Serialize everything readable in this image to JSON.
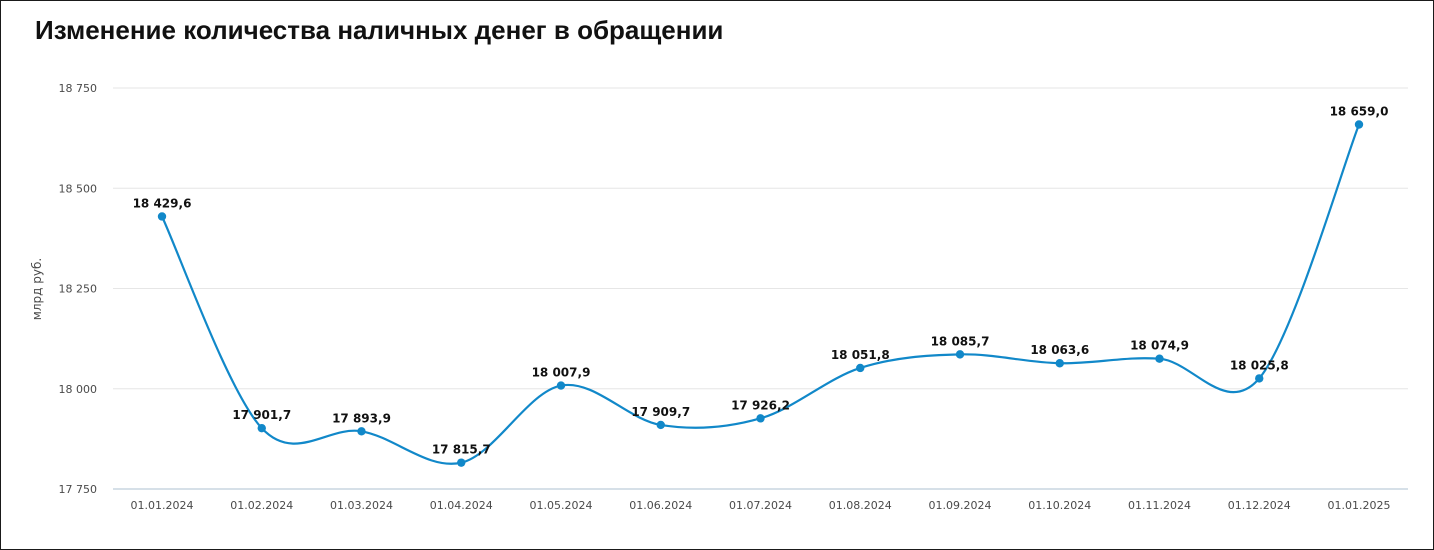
{
  "title": "Изменение количества наличных денег в обращении",
  "chart_data": {
    "type": "line",
    "title": "Изменение количества наличных денег в обращении",
    "xlabel": "",
    "ylabel": "млрд руб.",
    "categories": [
      "01.01.2024",
      "01.02.2024",
      "01.03.2024",
      "01.04.2024",
      "01.05.2024",
      "01.06.2024",
      "01.07.2024",
      "01.08.2024",
      "01.09.2024",
      "01.10.2024",
      "01.11.2024",
      "01.12.2024",
      "01.01.2025"
    ],
    "values": [
      18429.6,
      17901.7,
      17893.9,
      17815.7,
      18007.9,
      17909.7,
      17926.2,
      18051.8,
      18085.7,
      18063.6,
      18074.9,
      18025.8,
      18659.0
    ],
    "data_labels": [
      "18 429,6",
      "17 901,7",
      "17 893,9",
      "17 815,7",
      "18 007,9",
      "17 909,7",
      "17 926,2",
      "18 051,8",
      "18 085,7",
      "18 063,6",
      "18 074,9",
      "18 025,8",
      "18 659,0"
    ],
    "y_ticks": [
      17750,
      18000,
      18250,
      18500,
      18750
    ],
    "y_tick_labels": [
      "17 750",
      "18 000",
      "18 250",
      "18 500",
      "18 750"
    ],
    "ylim": [
      17750,
      18750
    ],
    "grid": true,
    "legend": "none",
    "line_color": "#1188c9",
    "grid_color": "#e6e6e6",
    "axis_color": "#c8d6e0"
  }
}
